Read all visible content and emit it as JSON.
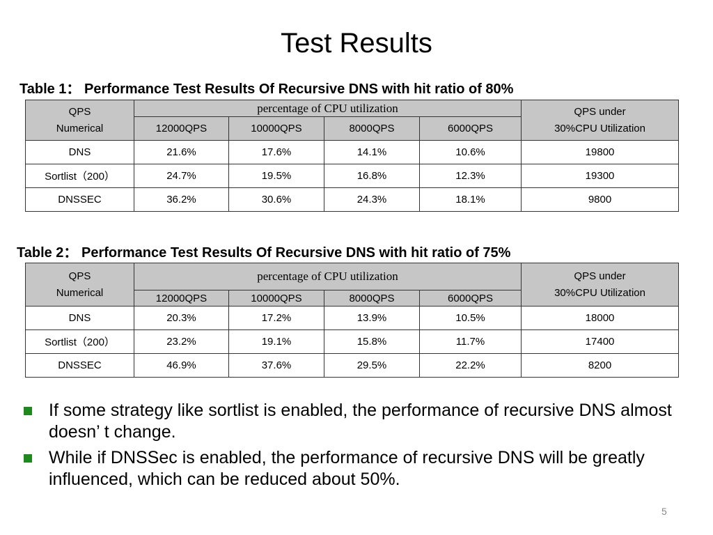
{
  "slide_title": "Test Results",
  "table1": {
    "caption": "Table 1： Performance Test Results Of Recursive DNS with hit ratio of 80%",
    "header_qps_line1": "QPS",
    "header_qps_line2": "Numerical",
    "header_cpu": "percentage of CPU utilization",
    "header_under_line1": "QPS under",
    "header_under_line2": "30%CPU Utilization",
    "columns": [
      "12000QPS",
      "10000QPS",
      "8000QPS",
      "6000QPS"
    ],
    "rows": [
      {
        "label": "DNS",
        "values": [
          "21.6%",
          "17.6%",
          "14.1%",
          "10.6%"
        ],
        "qps_under": "19800"
      },
      {
        "label": "Sortlist（200）",
        "values": [
          "24.7%",
          "19.5%",
          "16.8%",
          "12.3%"
        ],
        "qps_under": "19300"
      },
      {
        "label": "DNSSEC",
        "values": [
          "36.2%",
          "30.6%",
          "24.3%",
          "18.1%"
        ],
        "qps_under": "9800"
      }
    ]
  },
  "table2": {
    "caption": "Table 2： Performance Test Results Of Recursive DNS with hit ratio of 75%",
    "header_qps_line1": "QPS",
    "header_qps_line2": "Numerical",
    "header_cpu": "percentage of CPU utilization",
    "header_under_line1": "QPS under",
    "header_under_line2": "30%CPU Utilization",
    "columns": [
      "12000QPS",
      "10000QPS",
      "8000QPS",
      "6000QPS"
    ],
    "rows": [
      {
        "label": "DNS",
        "values": [
          "20.3%",
          "17.2%",
          "13.9%",
          "10.5%"
        ],
        "qps_under": "18000"
      },
      {
        "label": "Sortlist（200）",
        "values": [
          "23.2%",
          "19.1%",
          "15.8%",
          "11.7%"
        ],
        "qps_under": "17400"
      },
      {
        "label": "DNSSEC",
        "values": [
          "46.9%",
          "37.6%",
          "29.5%",
          "22.2%"
        ],
        "qps_under": "8200"
      }
    ]
  },
  "bullets": [
    "If some strategy like sortlist is enabled, the performance of recursive DNS almost doesn’ t change.",
    "While if DNSSec is enabled, the performance of recursive DNS will be greatly influenced, which can be reduced about 50%."
  ],
  "bullet_color": "#1e8a1e",
  "page_number": "5"
}
